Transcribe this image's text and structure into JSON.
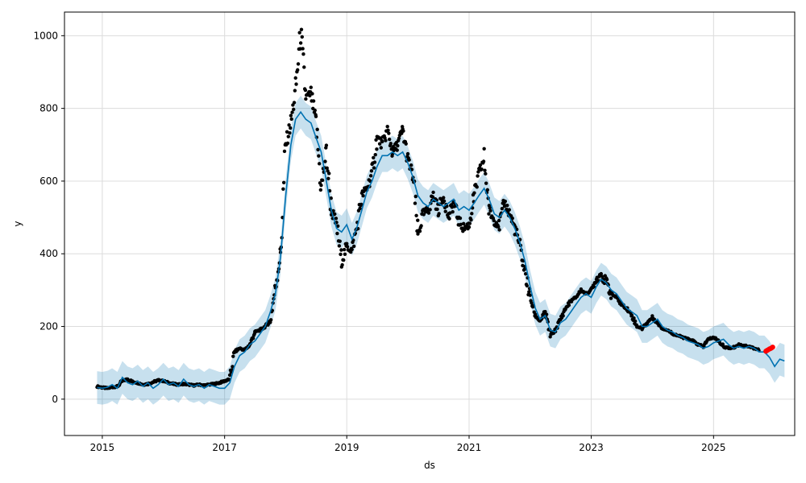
{
  "chart_data": {
    "type": "scatter",
    "title": "",
    "xlabel": "ds",
    "ylabel": "y",
    "xlim": [
      "2014-05-20",
      "2026-05-01"
    ],
    "ylim": [
      -100,
      1065
    ],
    "grid": true,
    "x_ticks": [
      "2015",
      "2017",
      "2019",
      "2021",
      "2023",
      "2025"
    ],
    "x_tick_dates": [
      "2015-01-01",
      "2017-01-01",
      "2019-01-01",
      "2021-01-01",
      "2023-01-01",
      "2025-01-01"
    ],
    "y_ticks": [
      "0",
      "200",
      "400",
      "600",
      "800",
      "1000"
    ],
    "y_tick_values": [
      0,
      200,
      400,
      600,
      800,
      1000
    ],
    "colors": {
      "observed": "#000000",
      "forecast_line": "#0072B2",
      "uncertainty_band": "#0072B2",
      "recent_points": "#ff0000",
      "grid": "#dcdcdc"
    },
    "series": [
      {
        "role": "forecast",
        "points": [
          [
            "2014-12-01",
            32
          ],
          [
            "2015-01-01",
            30
          ],
          [
            "2015-02-01",
            33
          ],
          [
            "2015-03-01",
            40
          ],
          [
            "2015-04-01",
            30
          ],
          [
            "2015-05-01",
            60
          ],
          [
            "2015-06-01",
            45
          ],
          [
            "2015-07-01",
            40
          ],
          [
            "2015-08-01",
            50
          ],
          [
            "2015-09-01",
            35
          ],
          [
            "2015-10-01",
            45
          ],
          [
            "2015-11-01",
            30
          ],
          [
            "2015-12-01",
            40
          ],
          [
            "2016-01-01",
            55
          ],
          [
            "2016-02-01",
            40
          ],
          [
            "2016-03-01",
            45
          ],
          [
            "2016-04-01",
            35
          ],
          [
            "2016-05-01",
            55
          ],
          [
            "2016-06-01",
            40
          ],
          [
            "2016-07-01",
            35
          ],
          [
            "2016-08-01",
            40
          ],
          [
            "2016-09-01",
            30
          ],
          [
            "2016-10-01",
            40
          ],
          [
            "2016-11-01",
            35
          ],
          [
            "2016-12-01",
            30
          ],
          [
            "2017-01-01",
            30
          ],
          [
            "2017-02-01",
            45
          ],
          [
            "2017-03-01",
            90
          ],
          [
            "2017-04-01",
            120
          ],
          [
            "2017-05-01",
            130
          ],
          [
            "2017-06-01",
            150
          ],
          [
            "2017-07-01",
            160
          ],
          [
            "2017-08-01",
            180
          ],
          [
            "2017-09-01",
            200
          ],
          [
            "2017-10-01",
            240
          ],
          [
            "2017-11-01",
            290
          ],
          [
            "2017-12-01",
            390
          ],
          [
            "2018-01-01",
            560
          ],
          [
            "2018-02-01",
            700
          ],
          [
            "2018-03-01",
            770
          ],
          [
            "2018-04-01",
            790
          ],
          [
            "2018-05-01",
            770
          ],
          [
            "2018-06-01",
            760
          ],
          [
            "2018-07-01",
            720
          ],
          [
            "2018-08-01",
            680
          ],
          [
            "2018-09-01",
            600
          ],
          [
            "2018-10-01",
            520
          ],
          [
            "2018-11-01",
            470
          ],
          [
            "2018-12-01",
            460
          ],
          [
            "2019-01-01",
            480
          ],
          [
            "2019-02-01",
            440
          ],
          [
            "2019-03-01",
            470
          ],
          [
            "2019-04-01",
            520
          ],
          [
            "2019-05-01",
            570
          ],
          [
            "2019-06-01",
            600
          ],
          [
            "2019-07-01",
            640
          ],
          [
            "2019-08-01",
            670
          ],
          [
            "2019-09-01",
            670
          ],
          [
            "2019-10-01",
            680
          ],
          [
            "2019-11-01",
            670
          ],
          [
            "2019-12-01",
            680
          ],
          [
            "2020-01-01",
            650
          ],
          [
            "2020-02-01",
            610
          ],
          [
            "2020-03-01",
            560
          ],
          [
            "2020-04-01",
            540
          ],
          [
            "2020-05-01",
            530
          ],
          [
            "2020-06-01",
            550
          ],
          [
            "2020-07-01",
            540
          ],
          [
            "2020-08-01",
            530
          ],
          [
            "2020-09-01",
            540
          ],
          [
            "2020-10-01",
            550
          ],
          [
            "2020-11-01",
            520
          ],
          [
            "2020-12-01",
            530
          ],
          [
            "2021-01-01",
            520
          ],
          [
            "2021-02-01",
            540
          ],
          [
            "2021-03-01",
            560
          ],
          [
            "2021-04-01",
            580
          ],
          [
            "2021-05-01",
            550
          ],
          [
            "2021-06-01",
            510
          ],
          [
            "2021-07-01",
            500
          ],
          [
            "2021-08-01",
            520
          ],
          [
            "2021-09-01",
            500
          ],
          [
            "2021-10-01",
            470
          ],
          [
            "2021-11-01",
            430
          ],
          [
            "2021-12-01",
            380
          ],
          [
            "2022-01-01",
            310
          ],
          [
            "2022-02-01",
            250
          ],
          [
            "2022-03-01",
            220
          ],
          [
            "2022-04-01",
            230
          ],
          [
            "2022-05-01",
            190
          ],
          [
            "2022-06-01",
            185
          ],
          [
            "2022-07-01",
            210
          ],
          [
            "2022-08-01",
            220
          ],
          [
            "2022-09-01",
            240
          ],
          [
            "2022-10-01",
            260
          ],
          [
            "2022-11-01",
            280
          ],
          [
            "2022-12-01",
            290
          ],
          [
            "2023-01-01",
            280
          ],
          [
            "2023-02-01",
            310
          ],
          [
            "2023-03-01",
            330
          ],
          [
            "2023-04-01",
            320
          ],
          [
            "2023-05-01",
            300
          ],
          [
            "2023-06-01",
            290
          ],
          [
            "2023-07-01",
            270
          ],
          [
            "2023-08-01",
            250
          ],
          [
            "2023-09-01",
            240
          ],
          [
            "2023-10-01",
            230
          ],
          [
            "2023-11-01",
            200
          ],
          [
            "2023-12-01",
            200
          ],
          [
            "2024-01-01",
            210
          ],
          [
            "2024-02-01",
            220
          ],
          [
            "2024-03-01",
            200
          ],
          [
            "2024-04-01",
            190
          ],
          [
            "2024-05-01",
            185
          ],
          [
            "2024-06-01",
            175
          ],
          [
            "2024-07-01",
            170
          ],
          [
            "2024-08-01",
            160
          ],
          [
            "2024-09-01",
            155
          ],
          [
            "2024-10-01",
            150
          ],
          [
            "2024-11-01",
            140
          ],
          [
            "2024-12-01",
            145
          ],
          [
            "2025-01-01",
            155
          ],
          [
            "2025-02-01",
            160
          ],
          [
            "2025-03-01",
            165
          ],
          [
            "2025-04-01",
            150
          ],
          [
            "2025-05-01",
            140
          ],
          [
            "2025-06-01",
            145
          ],
          [
            "2025-07-01",
            140
          ],
          [
            "2025-08-01",
            145
          ],
          [
            "2025-09-01",
            140
          ],
          [
            "2025-10-01",
            130
          ],
          [
            "2025-11-01",
            130
          ],
          [
            "2025-12-01",
            115
          ],
          [
            "2026-01-01",
            90
          ],
          [
            "2026-02-01",
            110
          ],
          [
            "2026-03-01",
            105
          ]
        ]
      },
      {
        "role": "observed",
        "points": [
          [
            "2014-12-01",
            35
          ],
          [
            "2015-01-01",
            32
          ],
          [
            "2015-02-01",
            30
          ],
          [
            "2015-03-01",
            33
          ],
          [
            "2015-04-01",
            35
          ],
          [
            "2015-05-01",
            50
          ],
          [
            "2015-06-01",
            55
          ],
          [
            "2015-07-01",
            48
          ],
          [
            "2015-08-01",
            45
          ],
          [
            "2015-09-01",
            40
          ],
          [
            "2015-10-01",
            42
          ],
          [
            "2015-11-01",
            47
          ],
          [
            "2015-12-01",
            52
          ],
          [
            "2016-01-01",
            50
          ],
          [
            "2016-02-01",
            45
          ],
          [
            "2016-03-01",
            42
          ],
          [
            "2016-04-01",
            40
          ],
          [
            "2016-05-01",
            42
          ],
          [
            "2016-06-01",
            40
          ],
          [
            "2016-07-01",
            38
          ],
          [
            "2016-08-01",
            40
          ],
          [
            "2016-09-01",
            38
          ],
          [
            "2016-10-01",
            40
          ],
          [
            "2016-11-01",
            42
          ],
          [
            "2016-12-01",
            45
          ],
          [
            "2017-01-01",
            50
          ],
          [
            "2017-02-01",
            55
          ],
          [
            "2017-03-01",
            130
          ],
          [
            "2017-04-01",
            140
          ],
          [
            "2017-05-01",
            135
          ],
          [
            "2017-06-01",
            150
          ],
          [
            "2017-07-01",
            185
          ],
          [
            "2017-08-01",
            190
          ],
          [
            "2017-09-01",
            200
          ],
          [
            "2017-10-01",
            215
          ],
          [
            "2017-11-01",
            310
          ],
          [
            "2017-12-01",
            400
          ],
          [
            "2018-01-01",
            700
          ],
          [
            "2018-02-01",
            760
          ],
          [
            "2018-03-01",
            850
          ],
          [
            "2018-04-01",
            1010
          ],
          [
            "2018-05-01",
            830
          ],
          [
            "2018-06-01",
            840
          ],
          [
            "2018-07-01",
            760
          ],
          [
            "2018-08-01",
            580
          ],
          [
            "2018-09-01",
            680
          ],
          [
            "2018-10-01",
            520
          ],
          [
            "2018-11-01",
            480
          ],
          [
            "2018-12-01",
            380
          ],
          [
            "2019-01-01",
            420
          ],
          [
            "2019-02-01",
            410
          ],
          [
            "2019-03-01",
            470
          ],
          [
            "2019-04-01",
            560
          ],
          [
            "2019-05-01",
            580
          ],
          [
            "2019-06-01",
            620
          ],
          [
            "2019-07-01",
            720
          ],
          [
            "2019-08-01",
            700
          ],
          [
            "2019-09-01",
            740
          ],
          [
            "2019-10-01",
            680
          ],
          [
            "2019-11-01",
            700
          ],
          [
            "2019-12-01",
            740
          ],
          [
            "2020-01-01",
            660
          ],
          [
            "2020-02-01",
            610
          ],
          [
            "2020-03-01",
            450
          ],
          [
            "2020-04-01",
            510
          ],
          [
            "2020-05-01",
            520
          ],
          [
            "2020-06-01",
            560
          ],
          [
            "2020-07-01",
            520
          ],
          [
            "2020-08-01",
            560
          ],
          [
            "2020-09-01",
            500
          ],
          [
            "2020-10-01",
            540
          ],
          [
            "2020-11-01",
            490
          ],
          [
            "2020-12-01",
            470
          ],
          [
            "2021-01-01",
            480
          ],
          [
            "2021-02-01",
            560
          ],
          [
            "2021-03-01",
            620
          ],
          [
            "2021-04-01",
            660
          ],
          [
            "2021-05-01",
            520
          ],
          [
            "2021-06-01",
            490
          ],
          [
            "2021-07-01",
            480
          ],
          [
            "2021-08-01",
            540
          ],
          [
            "2021-09-01",
            510
          ],
          [
            "2021-10-01",
            470
          ],
          [
            "2021-11-01",
            420
          ],
          [
            "2021-12-01",
            350
          ],
          [
            "2022-01-01",
            280
          ],
          [
            "2022-02-01",
            230
          ],
          [
            "2022-03-01",
            215
          ],
          [
            "2022-04-01",
            240
          ],
          [
            "2022-05-01",
            175
          ],
          [
            "2022-06-01",
            190
          ],
          [
            "2022-07-01",
            220
          ],
          [
            "2022-08-01",
            250
          ],
          [
            "2022-09-01",
            270
          ],
          [
            "2022-10-01",
            280
          ],
          [
            "2022-11-01",
            300
          ],
          [
            "2022-12-01",
            290
          ],
          [
            "2023-01-01",
            300
          ],
          [
            "2023-02-01",
            330
          ],
          [
            "2023-03-01",
            345
          ],
          [
            "2023-04-01",
            320
          ],
          [
            "2023-05-01",
            290
          ],
          [
            "2023-06-01",
            280
          ],
          [
            "2023-07-01",
            260
          ],
          [
            "2023-08-01",
            250
          ],
          [
            "2023-09-01",
            230
          ],
          [
            "2023-10-01",
            200
          ],
          [
            "2023-11-01",
            195
          ],
          [
            "2023-12-01",
            210
          ],
          [
            "2024-01-01",
            225
          ],
          [
            "2024-02-01",
            210
          ],
          [
            "2024-03-01",
            195
          ],
          [
            "2024-04-01",
            190
          ],
          [
            "2024-05-01",
            180
          ],
          [
            "2024-06-01",
            175
          ],
          [
            "2024-07-01",
            170
          ],
          [
            "2024-08-01",
            165
          ],
          [
            "2024-09-01",
            160
          ],
          [
            "2024-10-01",
            150
          ],
          [
            "2024-11-01",
            145
          ],
          [
            "2024-12-01",
            165
          ],
          [
            "2025-01-01",
            170
          ],
          [
            "2025-02-01",
            160
          ],
          [
            "2025-03-01",
            145
          ],
          [
            "2025-04-01",
            140
          ],
          [
            "2025-05-01",
            142
          ],
          [
            "2025-06-01",
            150
          ],
          [
            "2025-07-01",
            148
          ],
          [
            "2025-08-01",
            145
          ],
          [
            "2025-09-01",
            140
          ],
          [
            "2025-10-01",
            135
          ]
        ]
      },
      {
        "role": "recent",
        "points": [
          [
            "2025-11-10",
            132
          ],
          [
            "2025-11-20",
            135
          ],
          [
            "2025-12-01",
            138
          ],
          [
            "2025-12-10",
            140
          ],
          [
            "2025-12-20",
            143
          ]
        ]
      }
    ]
  }
}
